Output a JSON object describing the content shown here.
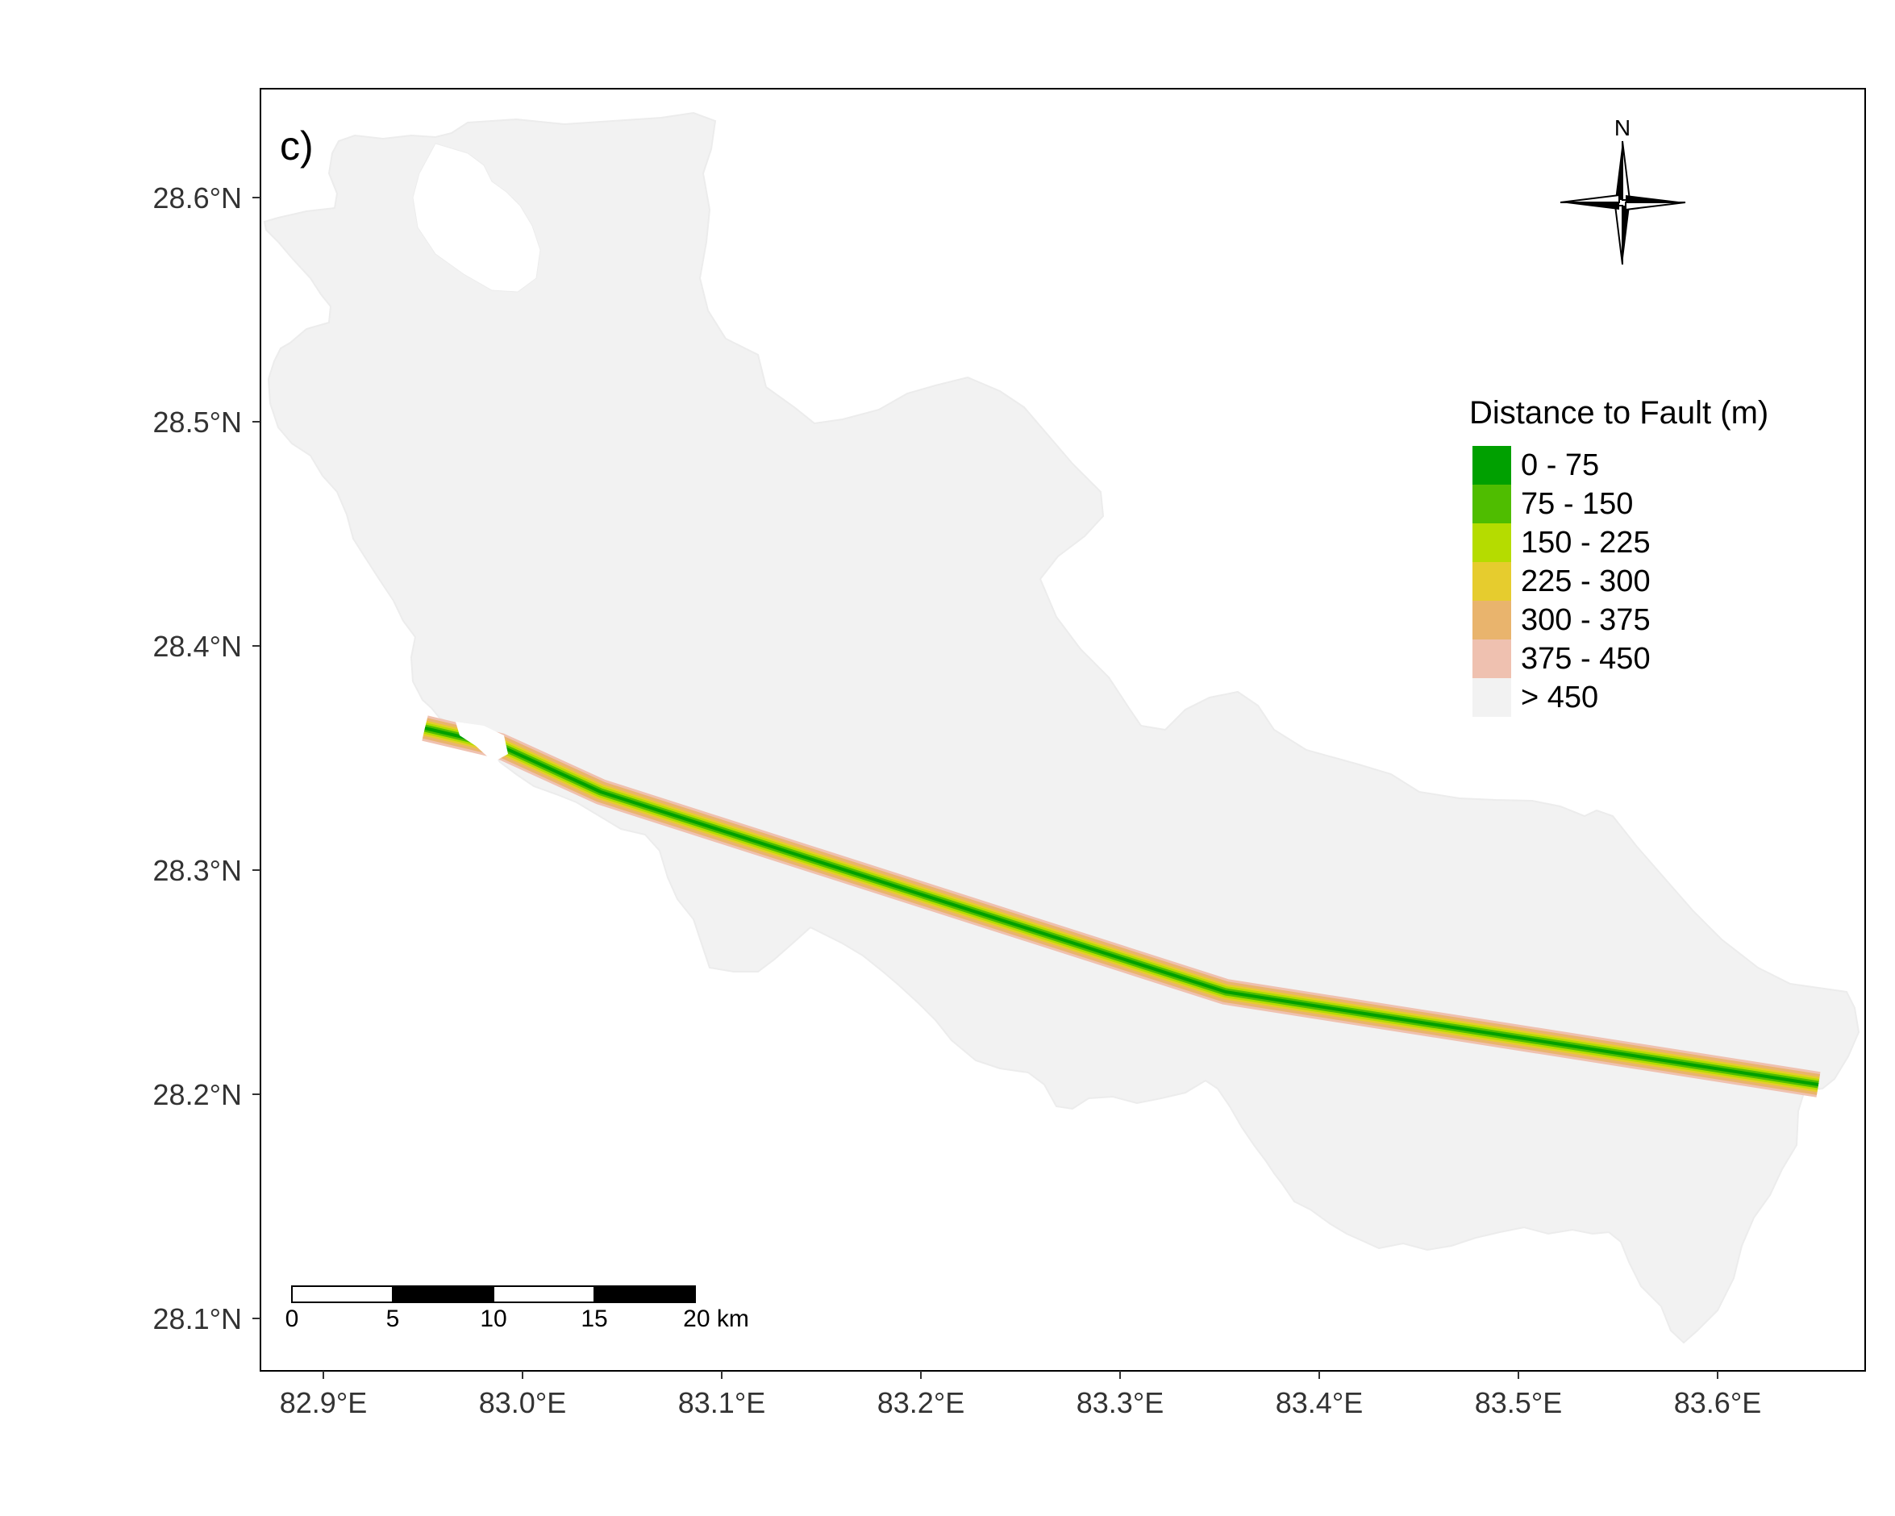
{
  "panel_label": "c)",
  "axes": {
    "x_ticks": [
      "82.9°E",
      "83.0°E",
      "83.1°E",
      "83.2°E",
      "83.3°E",
      "83.4°E",
      "83.5°E",
      "83.6°E"
    ],
    "y_ticks": [
      "28.6°N",
      "28.5°N",
      "28.4°N",
      "28.3°N",
      "28.2°N",
      "28.1°N"
    ]
  },
  "north_arrow": {
    "label": "N"
  },
  "legend": {
    "title": "Distance to Fault (m)",
    "items": [
      {
        "label": "0 - 75",
        "color": "#00a000"
      },
      {
        "label": "75 - 150",
        "color": "#4fbd00"
      },
      {
        "label": "150 - 225",
        "color": "#b5dc00"
      },
      {
        "label": "225 - 300",
        "color": "#e6cc2e"
      },
      {
        "label": "300 - 375",
        "color": "#e9b46d"
      },
      {
        "label": "375 - 450",
        "color": "#efc1b0"
      },
      {
        "label": "> 450",
        "color": "#f2f2f2"
      }
    ]
  },
  "scale_bar": {
    "labels": [
      "0",
      "5",
      "10",
      "15",
      "20 km"
    ]
  },
  "colors": {
    "watershed_fill": "#f2f2f2",
    "frame": "#000000"
  }
}
